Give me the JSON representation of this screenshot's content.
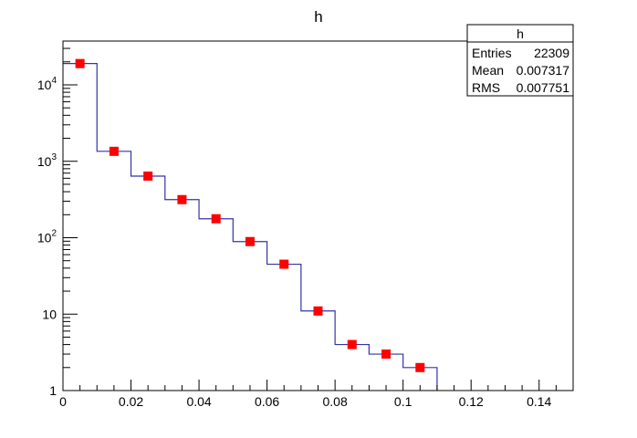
{
  "chart_data": {
    "type": "bar",
    "title": "h",
    "xlabel": "",
    "ylabel": "",
    "xlim": [
      0,
      0.15
    ],
    "ylim": [
      1,
      37000
    ],
    "y_scale": "log",
    "grid": false,
    "bin_edges": [
      0,
      0.01,
      0.02,
      0.03,
      0.04,
      0.05,
      0.06,
      0.07,
      0.08,
      0.09,
      0.1,
      0.11
    ],
    "values": [
      19000,
      1350,
      640,
      315,
      177,
      89,
      45,
      11,
      4,
      3,
      2
    ],
    "x_tick_labels": [
      "0",
      "0.02",
      "0.04",
      "0.06",
      "0.08",
      "0.1",
      "0.12",
      "0.14"
    ],
    "x_ticks": [
      0,
      0.02,
      0.04,
      0.06,
      0.08,
      0.1,
      0.12,
      0.14
    ],
    "y_ticks": [
      1,
      10,
      100,
      1000,
      10000
    ],
    "y_tick_labels": [
      {
        "base": "1",
        "exp": ""
      },
      {
        "base": "10",
        "exp": ""
      },
      {
        "base": "10",
        "exp": "2"
      },
      {
        "base": "10",
        "exp": "3"
      },
      {
        "base": "10",
        "exp": "4"
      }
    ],
    "line_color": "#3333aa",
    "marker_color": "#ff0000",
    "stats": {
      "title": "h",
      "rows": [
        {
          "label": "Entries",
          "value": "22309"
        },
        {
          "label": "Mean",
          "value": "0.007317"
        },
        {
          "label": "RMS",
          "value": "0.007751"
        }
      ]
    }
  }
}
